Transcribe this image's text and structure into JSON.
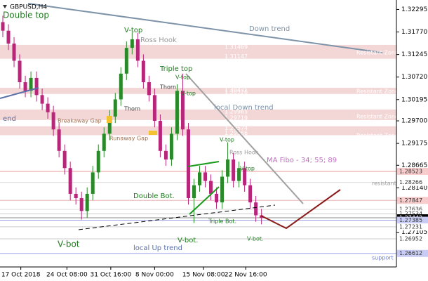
{
  "chart_data": {
    "type": "candlestick",
    "title": "GBPUSD,H4",
    "up_color": "#2a8a2a",
    "down_color": "#b8267a",
    "xlim": [
      -0.5,
      70
    ],
    "xticks": [
      {
        "value": 3.2,
        "label": "17 Oct 2018"
      },
      {
        "value": 11.4,
        "label": "24 Oct 08:00"
      },
      {
        "value": 19.2,
        "label": "31 Oct 16:00"
      },
      {
        "value": 27,
        "label": "8 Nov 00:00"
      },
      {
        "value": 35.7,
        "label": "15 Nov 08:00"
      },
      {
        "value": 43.2,
        "label": "22 Nov 16:00"
      }
    ],
    "ylim": [
      1.26297,
      1.32515
    ],
    "yticks": [
      1.32295,
      {
        "value": 1.3177,
        "label": "1.31770"
      },
      1.31245,
      {
        "value": 1.3072,
        "label": "1.30720"
      },
      1.30195,
      {
        "value": 1.297,
        "label": "1.29700"
      },
      1.29175,
      1.28665,
      {
        "value": 1.2814,
        "label": "1.28140"
      },
      1.27105
    ],
    "open": [
      1.32,
      1.318,
      1.315,
      1.311,
      1.306,
      1.304,
      1.307,
      1.303,
      1.301,
      1.299,
      1.295,
      1.29,
      1.286,
      1.28,
      1.279,
      1.276,
      1.28,
      1.285,
      1.29,
      1.294,
      1.298,
      1.302,
      1.308,
      1.314,
      1.316,
      1.311,
      1.306,
      1.303,
      1.297,
      1.29,
      1.288,
      1.294,
      1.304,
      1.295,
      1.279,
      1.282,
      1.285,
      1.283,
      1.28,
      1.278,
      1.284,
      1.288,
      1.283,
      1.286,
      1.282,
      1.278,
      1.275
    ],
    "high": [
      1.3215,
      1.3195,
      1.3165,
      1.3125,
      1.3075,
      1.3085,
      1.3085,
      1.3045,
      1.3025,
      1.3005,
      1.2965,
      1.2915,
      1.2875,
      1.2815,
      1.2805,
      1.2815,
      1.2865,
      1.2915,
      1.2955,
      1.2995,
      1.3035,
      1.3095,
      1.3155,
      1.3176,
      1.3175,
      1.3125,
      1.3075,
      1.3045,
      1.2985,
      1.2915,
      1.2955,
      1.3055,
      1.308,
      1.2965,
      1.2835,
      1.2865,
      1.2865,
      1.2845,
      1.2815,
      1.2855,
      1.292,
      1.2895,
      1.2875,
      1.2875,
      1.2835,
      1.2795,
      1.2765
    ],
    "low": [
      1.3165,
      1.3135,
      1.3095,
      1.3045,
      1.3025,
      1.3025,
      1.3015,
      1.2995,
      1.2975,
      1.2935,
      1.2885,
      1.2845,
      1.2785,
      1.2775,
      1.274,
      1.2745,
      1.2785,
      1.2835,
      1.2885,
      1.2925,
      1.2965,
      1.3005,
      1.3065,
      1.3125,
      1.3095,
      1.3045,
      1.3015,
      1.2955,
      1.2885,
      1.2865,
      1.2865,
      1.2925,
      1.2935,
      1.2775,
      1.2732,
      1.2805,
      1.2815,
      1.2785,
      1.2765,
      1.2765,
      1.2825,
      1.2815,
      1.2815,
      1.2805,
      1.2765,
      1.2735,
      1.2729
    ],
    "close": [
      1.318,
      1.315,
      1.311,
      1.306,
      1.304,
      1.307,
      1.303,
      1.301,
      1.299,
      1.295,
      1.29,
      1.286,
      1.28,
      1.279,
      1.276,
      1.28,
      1.285,
      1.29,
      1.294,
      1.298,
      1.302,
      1.308,
      1.314,
      1.316,
      1.311,
      1.306,
      1.303,
      1.297,
      1.29,
      1.288,
      1.294,
      1.304,
      1.295,
      1.279,
      1.282,
      1.285,
      1.283,
      1.28,
      1.278,
      1.284,
      1.288,
      1.283,
      1.286,
      1.282,
      1.278,
      1.275,
      1.27442
    ],
    "zones": [
      {
        "high": 1.31469,
        "low": 1.31147
      },
      {
        "high": 1.30471,
        "low": 1.30326
      },
      {
        "high": 1.29965,
        "low": 1.29719
      },
      {
        "high": 1.29574,
        "low": 1.29366
      }
    ],
    "zone_color": "#f3d6d6",
    "levels": [
      {
        "value": 1.28523,
        "color": "#e89a9a",
        "tag": "#f6cccc"
      },
      {
        "value": 1.28266,
        "color": "#dddddd",
        "tag": "#ffffff"
      },
      {
        "value": 1.27847,
        "color": "#e8b0b0",
        "tag": "#f6cccc"
      },
      {
        "value": 1.27636,
        "color": "#dddddd",
        "tag": "#ffffff"
      },
      {
        "value": 1.27534,
        "color": "#cccccc",
        "tag": "#ffffff"
      },
      {
        "value": 1.27442,
        "color": "#888888",
        "tag": "#000000"
      },
      {
        "value": 1.27385,
        "color": "#a0a8e8",
        "tag": "#c8ccf4"
      },
      {
        "value": 1.27231,
        "color": "#cccccc",
        "tag": "#ffffff"
      },
      {
        "value": 1.26952,
        "color": "#cccccc",
        "tag": "#ffffff"
      },
      {
        "value": 1.26612,
        "color": "#a0a8e8",
        "tag": "#c8ccf4"
      }
    ],
    "annotations": [
      "Double top",
      "V-top",
      "Ross Hook",
      "Down trend",
      "Triple top",
      "V-top",
      "Thorn",
      "V-top",
      "Thorn",
      "local Down trend",
      "Breakaway Gap",
      "Runaway Gap",
      "V-top",
      "Ross Hook",
      "V-top",
      "MA Fibo - 34; 55; 89",
      "Double Bot.",
      "Triple Bot.",
      "V-bot.",
      "V-bot.",
      "V-bot",
      "local Up trend",
      "end",
      "resistant",
      "support",
      "Resistant Zone",
      "Resistant Zone",
      "Resistant Zone",
      "Resistant Zone"
    ]
  }
}
